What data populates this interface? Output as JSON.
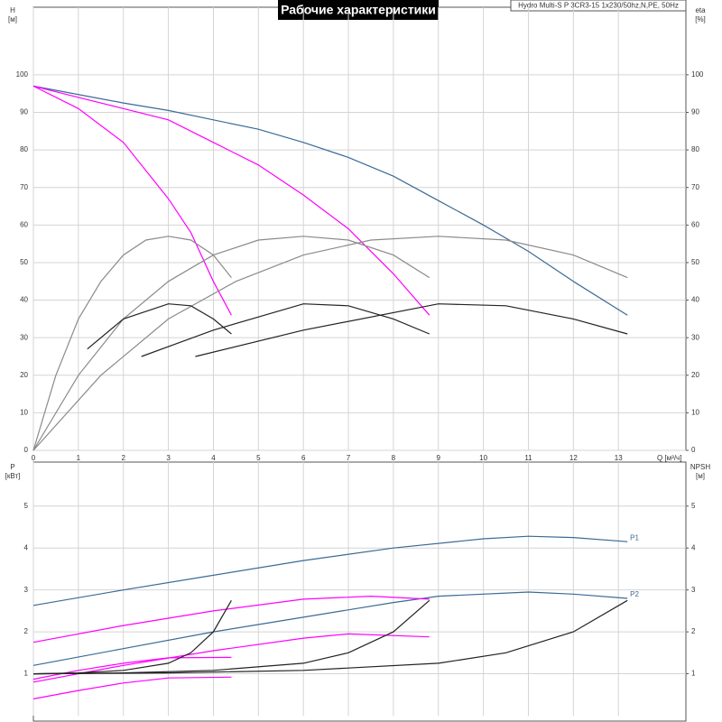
{
  "chart_data": [
    {
      "type": "line",
      "title": "Рабочие характеристики",
      "subtitle": "Hydro Multi-S P 3CR3-15 1x230/50hz,N,PE, 50Hz",
      "y_label": [
        "H",
        "[м]"
      ],
      "y2_label": [
        "eta",
        "[%]"
      ],
      "x_label": "Q [м³/ч]",
      "xlim": [
        0,
        14.5
      ],
      "xticks": [
        0,
        1,
        2,
        3,
        4,
        5,
        6,
        7,
        8,
        9,
        10,
        11,
        12,
        13
      ],
      "ylim": [
        0,
        118
      ],
      "yticks": [
        0,
        10,
        20,
        30,
        40,
        50,
        60,
        70,
        80,
        90,
        100
      ],
      "y2lim": [
        0,
        118
      ],
      "y2ticks": [
        0,
        10,
        20,
        30,
        40,
        50,
        60,
        70,
        80,
        90,
        100
      ],
      "grid": true,
      "series": [
        {
          "color": "#3a6a96",
          "x": [
            0,
            2,
            3,
            4,
            5,
            6,
            7,
            8,
            9,
            10,
            11,
            12,
            13.2
          ],
          "values": [
            97,
            92.5,
            90.5,
            88,
            85.5,
            82,
            78,
            73,
            66.5,
            60,
            53,
            45,
            36
          ]
        },
        {
          "color": "#ff00ff",
          "x": [
            0,
            1,
            2,
            3,
            4,
            5,
            6,
            7,
            8,
            8.8
          ],
          "values": [
            97,
            94,
            91,
            88,
            82,
            76,
            68,
            59,
            47,
            36
          ]
        },
        {
          "color": "#ff00ff",
          "x": [
            0,
            1,
            2,
            3,
            3.5,
            4,
            4.4
          ],
          "values": [
            97,
            91,
            82,
            67,
            58,
            45,
            36
          ]
        },
        {
          "color": "#8a8a8a",
          "axis": "y2",
          "x": [
            0,
            0.5,
            1,
            1.5,
            2,
            2.5,
            3,
            3.5,
            4,
            4.4
          ],
          "values": [
            0,
            20,
            35,
            45,
            52,
            56,
            57,
            56,
            52,
            46
          ]
        },
        {
          "color": "#8a8a8a",
          "axis": "y2",
          "x": [
            0,
            1,
            2,
            3,
            4,
            5,
            6,
            7,
            8,
            8.8
          ],
          "values": [
            0,
            20,
            35,
            45,
            52,
            56,
            57,
            56,
            52,
            46
          ]
        },
        {
          "color": "#8a8a8a",
          "axis": "y2",
          "x": [
            0,
            1.5,
            3,
            4.5,
            6,
            7.5,
            9,
            10.5,
            12,
            13.2
          ],
          "values": [
            0,
            20,
            35,
            45,
            52,
            56,
            57,
            56,
            52,
            46
          ]
        },
        {
          "color": "#222222",
          "axis": "y2",
          "x": [
            1.2,
            2,
            3,
            3.5,
            4,
            4.4
          ],
          "values": [
            27,
            35,
            39,
            38.5,
            35,
            31
          ]
        },
        {
          "color": "#222222",
          "axis": "y2",
          "x": [
            2.4,
            4,
            6,
            7,
            8,
            8.8
          ],
          "values": [
            25,
            32,
            39,
            38.5,
            35,
            31
          ]
        },
        {
          "color": "#222222",
          "axis": "y2",
          "x": [
            3.6,
            6,
            9,
            10.5,
            12,
            13.2
          ],
          "values": [
            25,
            32,
            39,
            38.5,
            35,
            31
          ]
        }
      ]
    },
    {
      "type": "line",
      "y_label": [
        "P",
        "[кВт]"
      ],
      "y2_label": [
        "NPSH",
        "[м]"
      ],
      "xlim": [
        0,
        14.5
      ],
      "xticks": [
        0,
        1,
        2,
        3,
        4,
        5,
        6,
        7,
        8,
        9,
        10,
        11,
        12,
        13
      ],
      "ylim": [
        0,
        6.05
      ],
      "yticks": [
        1,
        2,
        3,
        4,
        5
      ],
      "y2lim": [
        0,
        6.05
      ],
      "y2ticks": [
        1,
        2,
        3,
        4,
        5
      ],
      "grid": true,
      "series": [
        {
          "name": "P1",
          "color": "#3a6a96",
          "x": [
            0,
            2,
            4,
            6,
            8,
            10,
            11,
            12,
            13.2
          ],
          "values": [
            2.63,
            3.0,
            3.35,
            3.7,
            4.0,
            4.22,
            4.28,
            4.25,
            4.15
          ]
        },
        {
          "name": "P2",
          "color": "#3a6a96",
          "x": [
            0,
            2,
            4,
            6,
            8,
            9,
            11,
            12,
            13.2
          ],
          "values": [
            1.2,
            1.6,
            2.0,
            2.35,
            2.7,
            2.85,
            2.95,
            2.9,
            2.8
          ]
        },
        {
          "color": "#ff00ff",
          "x": [
            0,
            2,
            4,
            6,
            7.5,
            8.8
          ],
          "values": [
            1.75,
            2.15,
            2.5,
            2.78,
            2.85,
            2.78
          ]
        },
        {
          "color": "#ff00ff",
          "x": [
            0,
            2,
            4,
            6,
            7,
            8.8
          ],
          "values": [
            0.8,
            1.2,
            1.55,
            1.85,
            1.95,
            1.88
          ]
        },
        {
          "color": "#ff00ff",
          "x": [
            0,
            1,
            2,
            3,
            4.4
          ],
          "values": [
            0.87,
            1.08,
            1.25,
            1.38,
            1.39
          ]
        },
        {
          "color": "#ff00ff",
          "x": [
            0,
            1,
            2,
            3,
            4.4
          ],
          "values": [
            0.4,
            0.6,
            0.78,
            0.9,
            0.92
          ]
        },
        {
          "color": "#222222",
          "axis": "y2",
          "x": [
            0,
            1,
            2,
            3,
            3.5,
            4,
            4.4
          ],
          "values": [
            1.0,
            1.02,
            1.08,
            1.25,
            1.5,
            2.0,
            2.75
          ]
        },
        {
          "color": "#222222",
          "axis": "y2",
          "x": [
            0,
            2,
            4,
            6,
            7,
            8,
            8.8
          ],
          "values": [
            1.0,
            1.02,
            1.08,
            1.25,
            1.5,
            2.0,
            2.75
          ]
        },
        {
          "color": "#222222",
          "axis": "y2",
          "x": [
            0,
            3,
            6,
            9,
            10.5,
            12,
            13.2
          ],
          "values": [
            1.0,
            1.02,
            1.08,
            1.25,
            1.5,
            2.0,
            2.75
          ]
        }
      ]
    }
  ]
}
